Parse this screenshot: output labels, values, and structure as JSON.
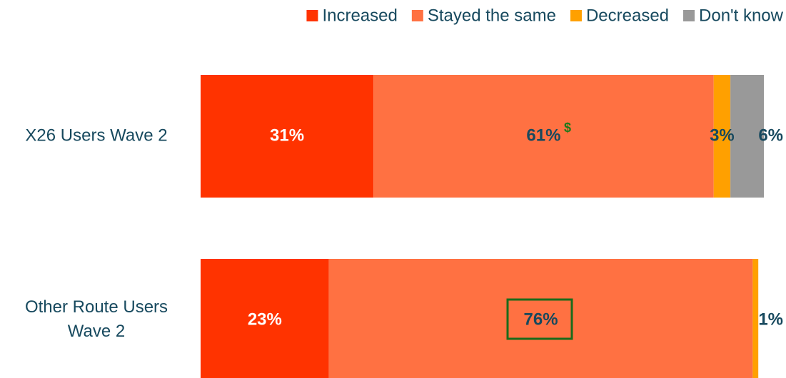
{
  "chart_data": {
    "type": "stacked-bar-horizontal",
    "categories": [
      "X26 Users Wave 2",
      "Other Route Users Wave 2"
    ],
    "series": [
      {
        "name": "Increased",
        "color": "#ff3300",
        "values": [
          31,
          23
        ],
        "value_labels": [
          "31%",
          "23%"
        ]
      },
      {
        "name": "Stayed the same",
        "color": "#ff7142",
        "values": [
          61,
          76
        ],
        "value_labels": [
          "61%",
          "76%"
        ]
      },
      {
        "name": "Decreased",
        "color": "#ffa000",
        "values": [
          3,
          1
        ],
        "value_labels": [
          "3%",
          "1%"
        ]
      },
      {
        "name": "Don't know",
        "color": "#999999",
        "values": [
          6,
          null
        ],
        "value_labels": [
          "6%",
          null
        ]
      }
    ],
    "annotations": [
      {
        "text": "$"
      }
    ],
    "xlim": [
      0,
      101
    ],
    "legend": "top-right"
  }
}
